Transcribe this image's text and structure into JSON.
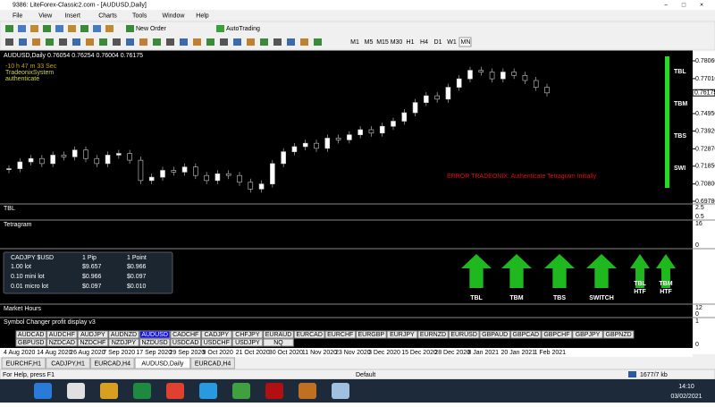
{
  "window": {
    "title": "9386: LiteForex-Classic2.com - [AUDUSD,Daily]"
  },
  "menu": [
    "File",
    "View",
    "Insert",
    "Charts",
    "Tools",
    "Window",
    "Help"
  ],
  "toolbar": {
    "new_order": "New Order",
    "autotrading": "AutoTrading",
    "timeframes": [
      "M1",
      "M5",
      "M15",
      "M30",
      "H1",
      "H4",
      "D1",
      "W1",
      "MN"
    ]
  },
  "chart": {
    "header": "AUDUSD,Daily  0.76054 0.76254 0.76004 0.76175",
    "overlay": [
      "-10 h 47 m 33 Sec",
      "TradeonixSystem",
      "authenticate"
    ],
    "ylim": [
      0.6978,
      0.7806
    ],
    "price_ticks": [
      {
        "value": 0.7806,
        "label": "0.78060"
      },
      {
        "value": 0.7701,
        "label": "0.77010"
      },
      {
        "value": 0.7495,
        "label": "0.74950"
      },
      {
        "value": 0.7392,
        "label": "0.73920"
      },
      {
        "value": 0.7287,
        "label": "0.72870"
      },
      {
        "value": 0.7185,
        "label": "0.71850"
      },
      {
        "value": 0.708,
        "label": "0.70800"
      },
      {
        "value": 0.6978,
        "label": "0.69780"
      }
    ],
    "current_price": 0.76175,
    "closes": [
      0.717,
      0.721,
      0.723,
      0.72,
      0.725,
      0.724,
      0.728,
      0.723,
      0.72,
      0.725,
      0.726,
      0.722,
      0.71,
      0.712,
      0.716,
      0.715,
      0.718,
      0.713,
      0.71,
      0.714,
      0.713,
      0.709,
      0.705,
      0.708,
      0.72,
      0.727,
      0.73,
      0.732,
      0.729,
      0.735,
      0.734,
      0.737,
      0.74,
      0.738,
      0.742,
      0.745,
      0.75,
      0.756,
      0.76,
      0.758,
      0.765,
      0.77,
      0.775,
      0.774,
      0.77,
      0.774,
      0.772,
      0.769,
      0.765,
      0.7617
    ],
    "signal_labels": [
      "TBL",
      "TBM",
      "TBS",
      "SWI"
    ],
    "error": "ERROR TRADEONIX: Authenticate Tetragram Initially",
    "dates": [
      "4 Aug 2020",
      "14 Aug 2020",
      "26 Aug 2020",
      "7 Sep 2020",
      "17 Sep 2020",
      "29 Sep 2020",
      "9 Oct 2020",
      "21 Oct 2020",
      "30 Oct 2020",
      "11 Nov 2020",
      "23 Nov 2020",
      "3 Dec 2020",
      "15 Dec 2020",
      "28 Dec 2020",
      "8 Jan 2021",
      "20 Jan 2021",
      "1 Feb 2021"
    ]
  },
  "subwindows": [
    {
      "name": "TBL",
      "scale": [
        "2.5",
        "0.5"
      ]
    },
    {
      "name": "Tetragram",
      "scale": [
        "16",
        "0"
      ]
    },
    {
      "name": "Market Hours",
      "scale": [
        "12",
        "0"
      ]
    },
    {
      "name": "Symbol Changer profit display v3",
      "scale": [
        "1",
        "0"
      ]
    }
  ],
  "pip_table": {
    "header": [
      "CADJPY $USD",
      "1 Pip",
      "1 Point"
    ],
    "rows": [
      [
        "1.00 lot",
        "$9.657",
        "$0.966"
      ],
      [
        "0.10 mini lot",
        "$0.966",
        "$0.097"
      ],
      [
        "0.01 micro lot",
        "$0.097",
        "$0.010"
      ]
    ]
  },
  "arrows": [
    "TBL",
    "TBM",
    "TBS",
    "SWITCH",
    "TBL\nHTF",
    "TBM\nHTF"
  ],
  "symbols": {
    "row1": [
      "AUDCAD",
      "AUDCHF",
      "AUDJPY",
      "AUDNZD",
      "AUDUSD",
      "CADCHF",
      "CADJPY",
      "CHFJPY",
      "EURAUD",
      "EURCAD",
      "EURCHF",
      "EURGBP",
      "EURJPY",
      "EURNZD",
      "EURUSD",
      "GBPAUD",
      "GBPCAD",
      "GBPCHF",
      "GBPJPY",
      "GBPNZD"
    ],
    "row2": [
      "GBPUSD",
      "NZDCAD",
      "NZDCHF",
      "NZDJPY",
      "NZDUSD",
      "USDCAD",
      "USDCHF",
      "USDJPY",
      "NQ"
    ],
    "active": "AUDUSD"
  },
  "tabs": [
    "EURCHF,H1",
    "CADJPY,H1",
    "EURCAD,H4",
    "AUDUSD,Daily",
    "EURCAD,H4"
  ],
  "active_tab": "AUDUSD,Daily",
  "status": {
    "help": "For Help, press F1",
    "profile": "Default",
    "traffic": "1677/7 kb"
  },
  "clock": {
    "time": "14:10",
    "date": "03/02/2021"
  }
}
